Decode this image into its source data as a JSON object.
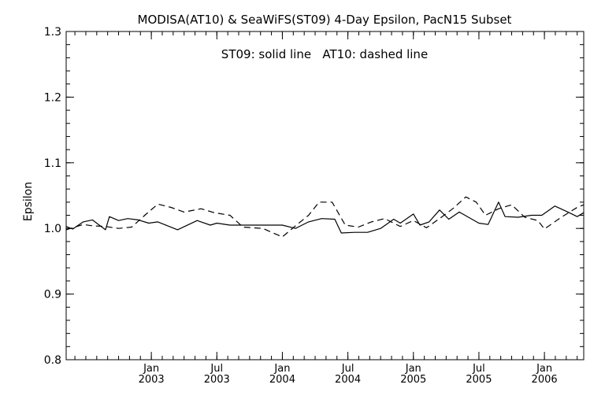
{
  "chart_data": {
    "type": "line",
    "title": "MODISA(AT10) & SeaWiFS(ST09) 4-Day Epsilon, PacN15 Subset",
    "annotation": "ST09: solid line   AT10: dashed line",
    "ylabel": "Epsilon",
    "xlabel": "",
    "xlim": [
      2002.35,
      2006.3
    ],
    "ylim": [
      0.8,
      1.3
    ],
    "yticks": [
      {
        "value": 0.8,
        "label": "0.8"
      },
      {
        "value": 0.9,
        "label": "0.9"
      },
      {
        "value": 1.0,
        "label": "1.0"
      },
      {
        "value": 1.1,
        "label": "1.1"
      },
      {
        "value": 1.2,
        "label": "1.2"
      },
      {
        "value": 1.3,
        "label": "1.3"
      }
    ],
    "xticks": [
      {
        "value": 2003.0,
        "month": "Jan",
        "year": "2003"
      },
      {
        "value": 2003.5,
        "month": "Jul",
        "year": "2003"
      },
      {
        "value": 2004.0,
        "month": "Jan",
        "year": "2004"
      },
      {
        "value": 2004.5,
        "month": "Jul",
        "year": "2004"
      },
      {
        "value": 2005.0,
        "month": "Jan",
        "year": "2005"
      },
      {
        "value": 2005.5,
        "month": "Jul",
        "year": "2005"
      },
      {
        "value": 2006.0,
        "month": "Jan",
        "year": "2006"
      }
    ],
    "grid": false,
    "series": [
      {
        "name": "ST09",
        "style": "solid",
        "color": "#000000",
        "points": [
          [
            2002.35,
            1.003
          ],
          [
            2002.4,
            0.999
          ],
          [
            2002.48,
            1.01
          ],
          [
            2002.55,
            1.013
          ],
          [
            2002.65,
            0.998
          ],
          [
            2002.68,
            1.018
          ],
          [
            2002.75,
            1.012
          ],
          [
            2002.82,
            1.015
          ],
          [
            2002.9,
            1.013
          ],
          [
            2002.98,
            1.008
          ],
          [
            2003.05,
            1.01
          ],
          [
            2003.2,
            0.998
          ],
          [
            2003.35,
            1.012
          ],
          [
            2003.45,
            1.005
          ],
          [
            2003.5,
            1.008
          ],
          [
            2003.6,
            1.005
          ],
          [
            2003.7,
            1.005
          ],
          [
            2003.9,
            1.005
          ],
          [
            2004.0,
            1.005
          ],
          [
            2004.1,
            1.0
          ],
          [
            2004.2,
            1.01
          ],
          [
            2004.3,
            1.015
          ],
          [
            2004.4,
            1.014
          ],
          [
            2004.45,
            0.993
          ],
          [
            2004.55,
            0.994
          ],
          [
            2004.65,
            0.994
          ],
          [
            2004.75,
            1.0
          ],
          [
            2004.85,
            1.014
          ],
          [
            2004.9,
            1.008
          ],
          [
            2005.0,
            1.022
          ],
          [
            2005.05,
            1.005
          ],
          [
            2005.12,
            1.01
          ],
          [
            2005.2,
            1.028
          ],
          [
            2005.27,
            1.014
          ],
          [
            2005.35,
            1.025
          ],
          [
            2005.5,
            1.008
          ],
          [
            2005.57,
            1.006
          ],
          [
            2005.65,
            1.04
          ],
          [
            2005.7,
            1.018
          ],
          [
            2005.8,
            1.017
          ],
          [
            2005.9,
            1.02
          ],
          [
            2005.98,
            1.02
          ],
          [
            2006.08,
            1.034
          ],
          [
            2006.18,
            1.025
          ],
          [
            2006.25,
            1.018
          ],
          [
            2006.3,
            1.024
          ]
        ]
      },
      {
        "name": "AT10",
        "style": "dashed",
        "color": "#000000",
        "points": [
          [
            2002.35,
            0.998
          ],
          [
            2002.48,
            1.006
          ],
          [
            2002.55,
            1.004
          ],
          [
            2002.65,
            1.003
          ],
          [
            2002.75,
            1.0
          ],
          [
            2002.85,
            1.002
          ],
          [
            2002.95,
            1.02
          ],
          [
            2003.05,
            1.037
          ],
          [
            2003.15,
            1.032
          ],
          [
            2003.25,
            1.025
          ],
          [
            2003.38,
            1.03
          ],
          [
            2003.48,
            1.024
          ],
          [
            2003.6,
            1.02
          ],
          [
            2003.7,
            1.002
          ],
          [
            2003.85,
            1.0
          ],
          [
            2004.0,
            0.987
          ],
          [
            2004.1,
            1.004
          ],
          [
            2004.2,
            1.02
          ],
          [
            2004.28,
            1.04
          ],
          [
            2004.38,
            1.04
          ],
          [
            2004.48,
            1.005
          ],
          [
            2004.58,
            1.002
          ],
          [
            2004.68,
            1.01
          ],
          [
            2004.78,
            1.015
          ],
          [
            2004.9,
            1.003
          ],
          [
            2005.0,
            1.012
          ],
          [
            2005.1,
            1.001
          ],
          [
            2005.2,
            1.015
          ],
          [
            2005.3,
            1.03
          ],
          [
            2005.4,
            1.048
          ],
          [
            2005.48,
            1.04
          ],
          [
            2005.55,
            1.02
          ],
          [
            2005.65,
            1.03
          ],
          [
            2005.75,
            1.036
          ],
          [
            2005.85,
            1.017
          ],
          [
            2005.95,
            1.012
          ],
          [
            2006.0,
            0.999
          ],
          [
            2006.12,
            1.016
          ],
          [
            2006.25,
            1.032
          ],
          [
            2006.3,
            1.036
          ]
        ]
      }
    ]
  }
}
